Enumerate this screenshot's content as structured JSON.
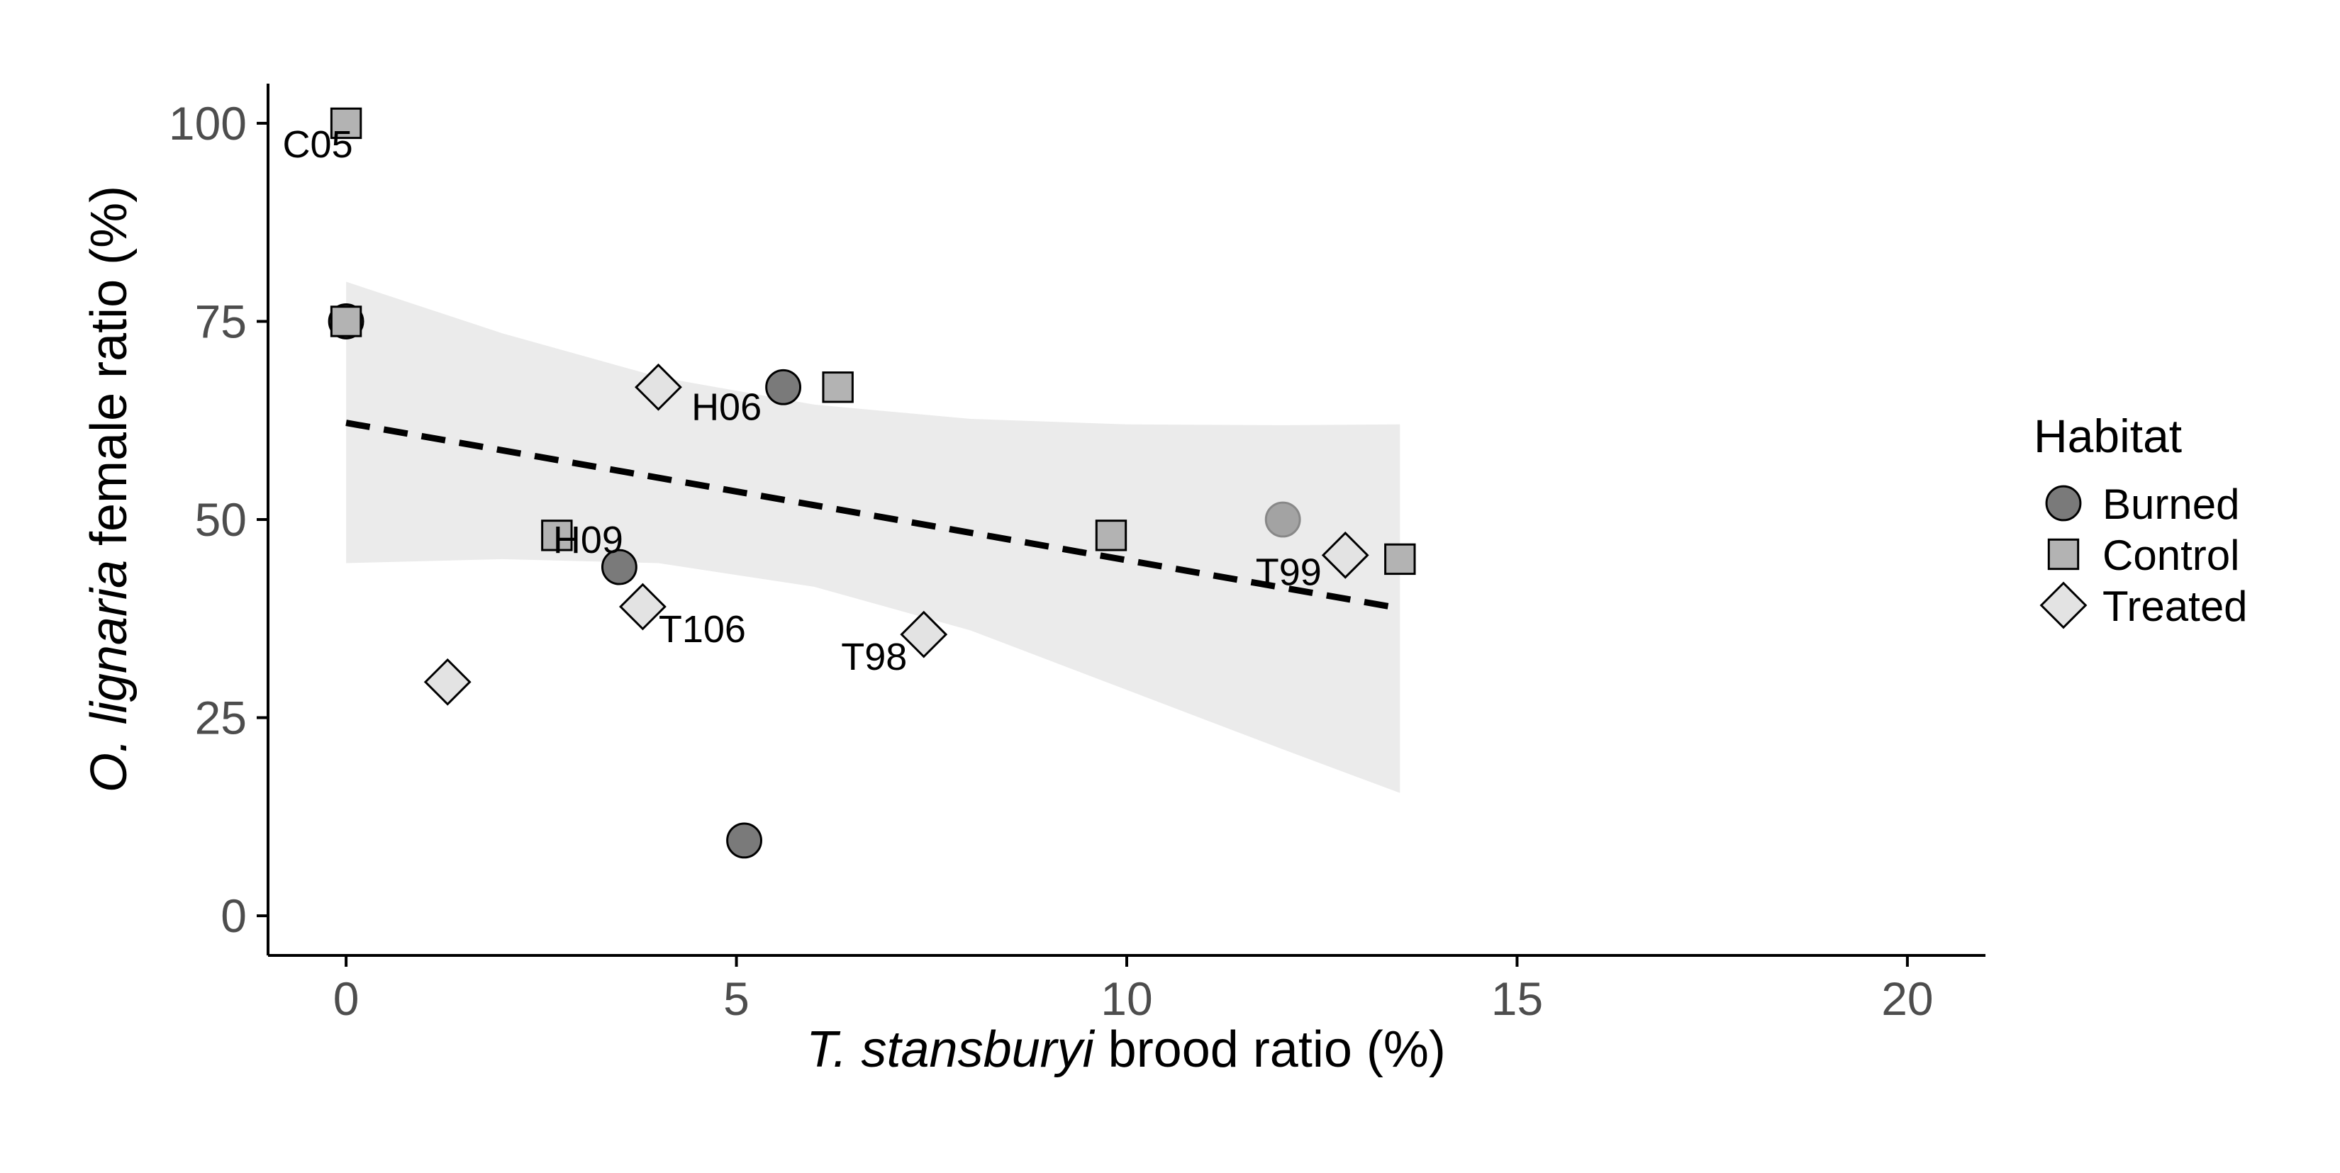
{
  "chart_data": {
    "type": "scatter",
    "title": "",
    "xlabel_italic": "T. stansburyi",
    "xlabel_rest": " brood ratio (%)",
    "ylabel_italic": "O. lignaria",
    "ylabel_rest": " female ratio (%)",
    "xlim": [
      -1,
      21
    ],
    "ylim": [
      -5,
      105
    ],
    "x_ticks": [
      0,
      5,
      10,
      15,
      20
    ],
    "y_ticks": [
      0,
      25,
      50,
      75,
      100
    ],
    "grid": false,
    "legend": {
      "title": "Habitat",
      "placement": "right",
      "entries": [
        {
          "label": "Burned",
          "shape": "circle",
          "color": "#7a7a7a"
        },
        {
          "label": "Control",
          "shape": "square",
          "color": "#b3b3b3"
        },
        {
          "label": "Treated",
          "shape": "diamond",
          "color": "#e3e3e3"
        }
      ]
    },
    "series": [
      {
        "name": "Burned",
        "shape": "circle",
        "points": [
          {
            "x": 0.0,
            "y": 75.0,
            "label": ""
          },
          {
            "x": 5.6,
            "y": 66.7,
            "label": "H06"
          },
          {
            "x": 3.5,
            "y": 44.0,
            "label": "H09"
          },
          {
            "x": 12.0,
            "y": 50.0,
            "label": ""
          },
          {
            "x": 5.1,
            "y": 9.5,
            "label": ""
          }
        ]
      },
      {
        "name": "Control",
        "shape": "square",
        "points": [
          {
            "x": 0.0,
            "y": 100.0,
            "label": "C05"
          },
          {
            "x": 0.0,
            "y": 75.0,
            "label": ""
          },
          {
            "x": 6.3,
            "y": 66.7,
            "label": ""
          },
          {
            "x": 2.7,
            "y": 48.0,
            "label": ""
          },
          {
            "x": 9.8,
            "y": 48.0,
            "label": ""
          },
          {
            "x": 13.5,
            "y": 45.0,
            "label": ""
          }
        ]
      },
      {
        "name": "Treated",
        "shape": "diamond",
        "points": [
          {
            "x": 4.0,
            "y": 66.7,
            "label": ""
          },
          {
            "x": 3.8,
            "y": 39.0,
            "label": "T106"
          },
          {
            "x": 7.4,
            "y": 35.5,
            "label": "T98"
          },
          {
            "x": 1.3,
            "y": 29.5,
            "label": ""
          },
          {
            "x": 12.8,
            "y": 45.5,
            "label": "T99"
          }
        ]
      }
    ],
    "trend": {
      "style": "dashed",
      "x": [
        0,
        13.5
      ],
      "y": [
        62.2,
        38.8
      ],
      "ci_x": [
        0,
        2,
        4,
        6,
        8,
        10,
        12,
        13.5
      ],
      "ci_upper": [
        80.0,
        73.5,
        68.0,
        64.5,
        62.7,
        62.0,
        61.9,
        62.0
      ],
      "ci_lower": [
        44.5,
        45.0,
        44.5,
        41.5,
        36.0,
        28.5,
        21.0,
        15.5
      ]
    },
    "colors": {
      "Burned": "#7a7a7a",
      "Control": "#b3b3b3",
      "Treated": "#e3e3e3",
      "ci_band": "#ebebeb",
      "axis": "#000000",
      "tick_text": "#4d4d4d"
    }
  }
}
